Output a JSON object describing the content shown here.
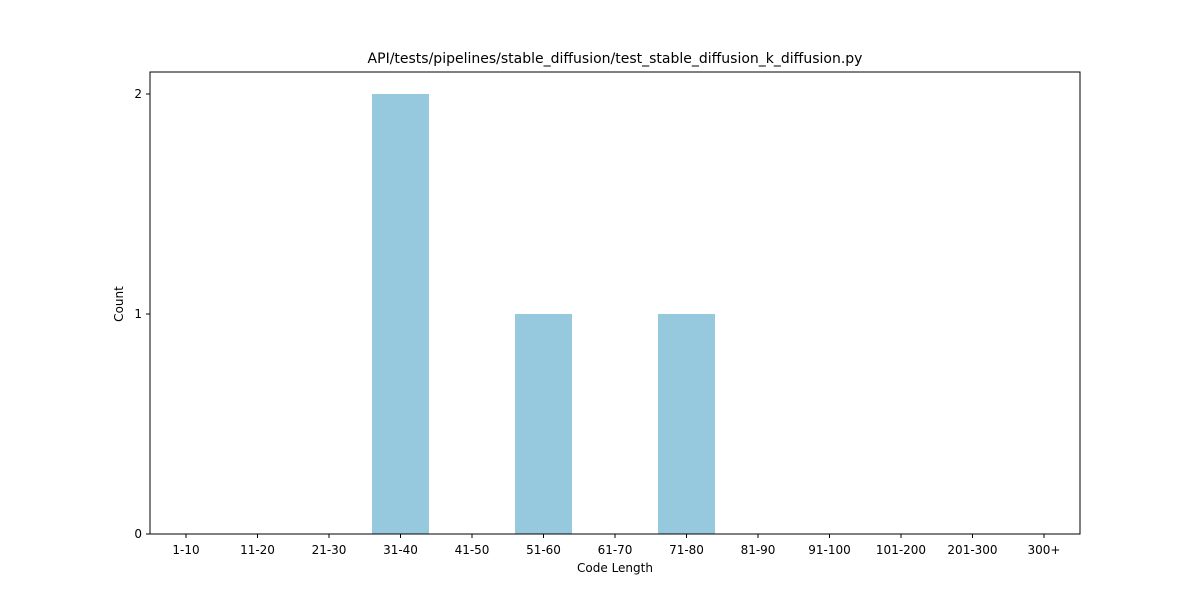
{
  "chart_data": {
    "type": "bar",
    "title": "API/tests/pipelines/stable_diffusion/test_stable_diffusion_k_diffusion.py",
    "xlabel": "Code Length",
    "ylabel": "Count",
    "categories": [
      "1-10",
      "11-20",
      "21-30",
      "31-40",
      "41-50",
      "51-60",
      "61-70",
      "71-80",
      "81-90",
      "91-100",
      "101-200",
      "201-300",
      "300+"
    ],
    "values": [
      0,
      0,
      0,
      2,
      0,
      1,
      0,
      1,
      0,
      0,
      0,
      0,
      0
    ],
    "ylim": [
      0,
      2.1
    ],
    "yticks": [
      0,
      1,
      2
    ],
    "bar_color": "#96c9de",
    "grid": false,
    "legend": "none"
  }
}
